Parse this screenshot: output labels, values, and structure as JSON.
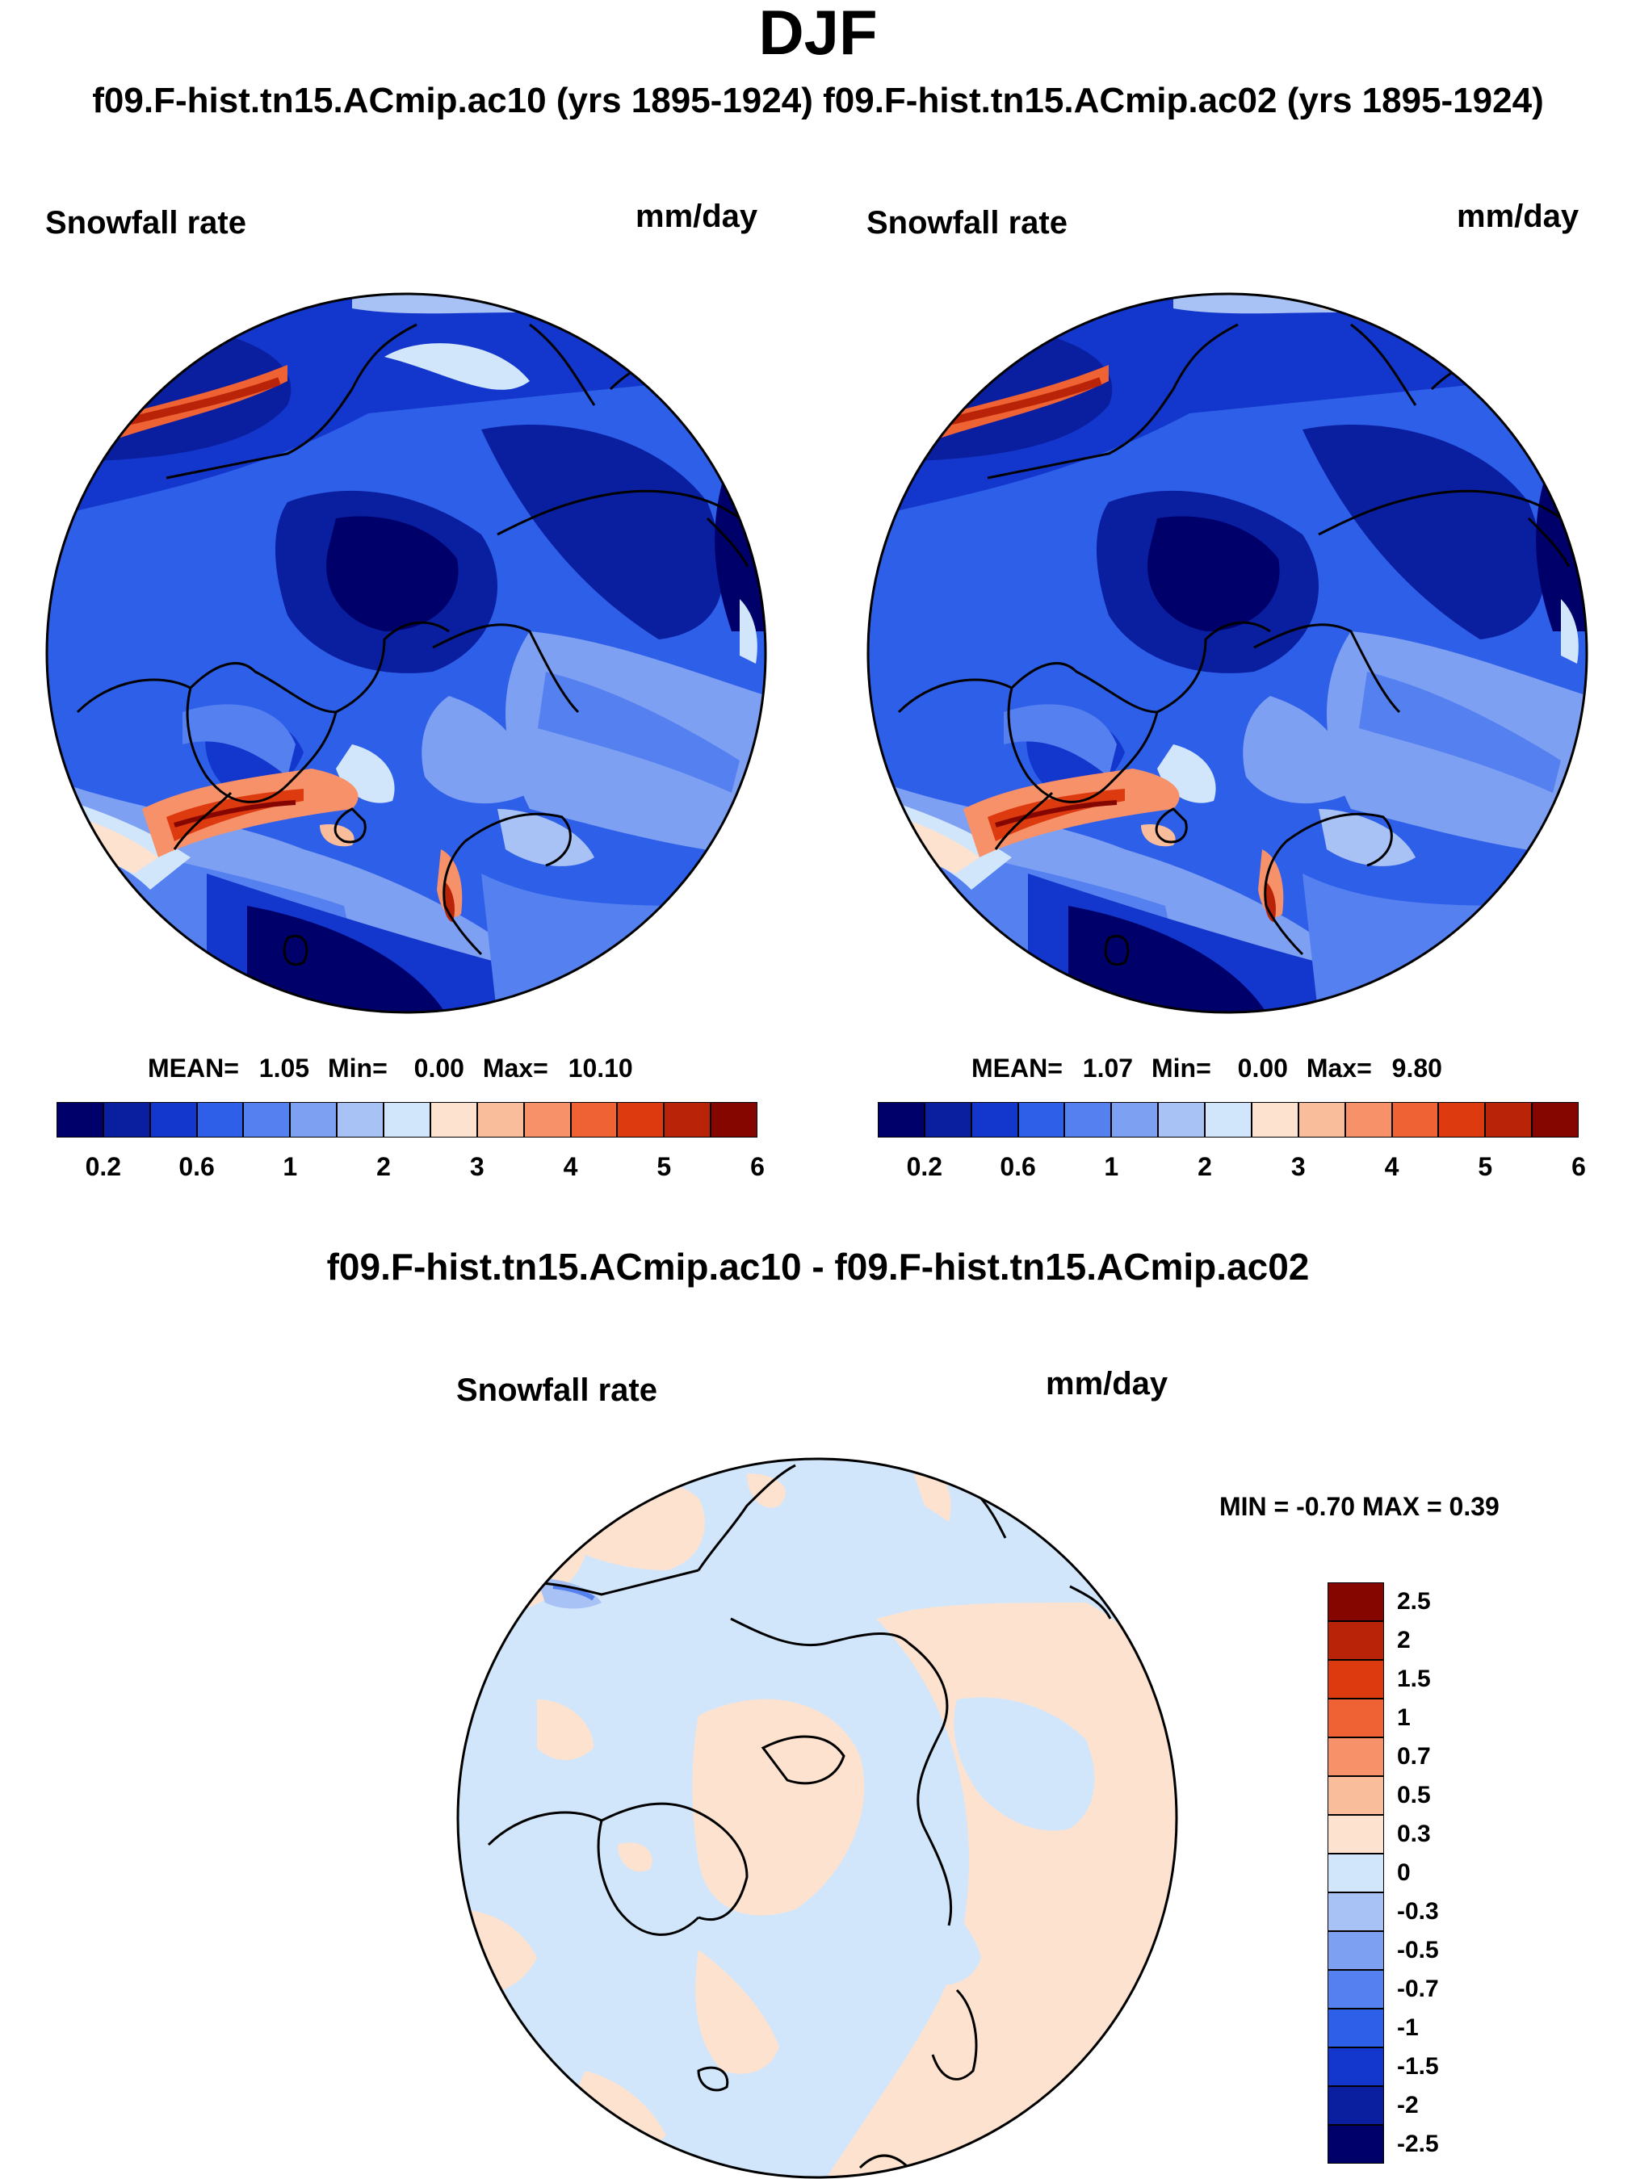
{
  "header": {
    "season": "DJF",
    "case_left": "f09.F-hist.tn15.ACmip.ac10 (yrs 1895-1924)",
    "case_right": "f09.F-hist.tn15.ACmip.ac02 (yrs 1895-1924)"
  },
  "panels": [
    {
      "variable": "Snowfall rate",
      "units": "mm/day",
      "stats": {
        "mean_label": "MEAN=",
        "mean": "1.05",
        "min_label": "Min=",
        "min": "0.00",
        "max_label": "Max=",
        "max": "10.10"
      }
    },
    {
      "variable": "Snowfall rate",
      "units": "mm/day",
      "stats": {
        "mean_label": "MEAN=",
        "mean": "1.07",
        "min_label": "Min=",
        "min": "0.00",
        "max_label": "Max=",
        "max": "9.80"
      }
    }
  ],
  "abs_colorbar": {
    "colors": [
      "#00006b",
      "#0a1fa0",
      "#1337cc",
      "#2e5fe8",
      "#5580f0",
      "#7ea0f2",
      "#a8c2f6",
      "#d2e6fb",
      "#fde2cf",
      "#f9bd9c",
      "#f6916a",
      "#ef6233",
      "#dd3a10",
      "#b92308",
      "#850600"
    ],
    "ticks": [
      "0.2",
      "0.6",
      "1",
      "2",
      "3",
      "4",
      "5",
      "6"
    ]
  },
  "difference": {
    "title": "f09.F-hist.tn15.ACmip.ac10 - f09.F-hist.tn15.ACmip.ac02",
    "variable": "Snowfall rate",
    "units": "mm/day",
    "range_text": "MIN =  -0.70 MAX =   0.39",
    "colorbar": {
      "colors": [
        "#850600",
        "#b92308",
        "#dd3a10",
        "#ef6233",
        "#f6916a",
        "#f9bd9c",
        "#fde2cf",
        "#d2e6fb",
        "#a8c2f6",
        "#7ea0f2",
        "#5580f0",
        "#2e5fe8",
        "#1337cc",
        "#0a1fa0",
        "#00006b"
      ],
      "ticks": [
        "2.5",
        "2",
        "1.5",
        "1",
        "0.7",
        "0.5",
        "0.3",
        "0",
        "-0.3",
        "-0.5",
        "-0.7",
        "-1",
        "-1.5",
        "-2",
        "-2.5"
      ]
    }
  }
}
